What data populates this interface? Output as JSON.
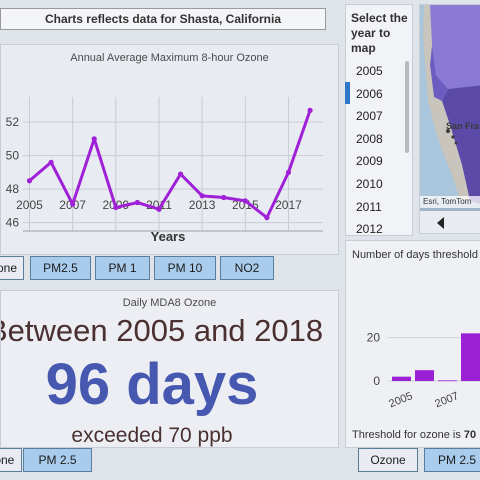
{
  "banner": "Charts reflects data for Shasta, California",
  "ozone_chart": {
    "title": "Annual Average Maximum 8-hour Ozone",
    "xlabel": "Years",
    "y_tick_labels": [
      "52",
      "50",
      "48",
      "46"
    ],
    "x_tick_labels": [
      "2005",
      "2007",
      "2009",
      "2011",
      "2013",
      "2015",
      "2017"
    ],
    "chart_data": {
      "type": "line",
      "title": "Annual Average Maximum 8-hour Ozone",
      "xlabel": "Years",
      "ylabel": "",
      "x": [
        2005,
        2006,
        2007,
        2008,
        2009,
        2010,
        2011,
        2012,
        2013,
        2014,
        2015,
        2016,
        2017,
        2018
      ],
      "series": [
        {
          "values": [
            48.5,
            49.6,
            47.1,
            51.0,
            46.9,
            47.2,
            46.8,
            48.9,
            47.6,
            47.5,
            47.3,
            46.3,
            49.0,
            52.7
          ]
        }
      ],
      "ylim": [
        45.5,
        53.5
      ],
      "grid": true,
      "color": "#a020d8"
    }
  },
  "top_tabs": [
    "Ozone",
    "PM2.5",
    "PM 1",
    "PM 10",
    "NO2"
  ],
  "mda8": {
    "title": "Daily MDA8 Ozone",
    "line1": "Between 2005 and 2018",
    "big": "96 days",
    "line3": "exceeded 70 ppb"
  },
  "bottom_left_tabs": [
    "Ozone",
    "PM 2.5"
  ],
  "year_select": {
    "header": "Select the year to map",
    "years": [
      "2005",
      "2006",
      "2007",
      "2008",
      "2009",
      "2010",
      "2011",
      "2012"
    ],
    "selected": "2006"
  },
  "map": {
    "attribution": "Esri, TomTom",
    "place_label": "San Fra"
  },
  "days_chart": {
    "title": "Number of days threshold",
    "y_tick_labels": [
      "20",
      "0"
    ],
    "x_tick_labels": [
      "2005",
      "2007",
      "20"
    ],
    "threshold_label": "Threshold for ozone  is",
    "threshold_value": "70",
    "chart_data": {
      "type": "bar",
      "categories": [
        "2005",
        "2006",
        "2007",
        "2008"
      ],
      "values": [
        2,
        5,
        0.3,
        22
      ],
      "ylim": [
        0,
        30
      ],
      "color": "#9b20d6"
    }
  },
  "bottom_right_tabs": [
    "Ozone",
    "PM 2.5"
  ]
}
